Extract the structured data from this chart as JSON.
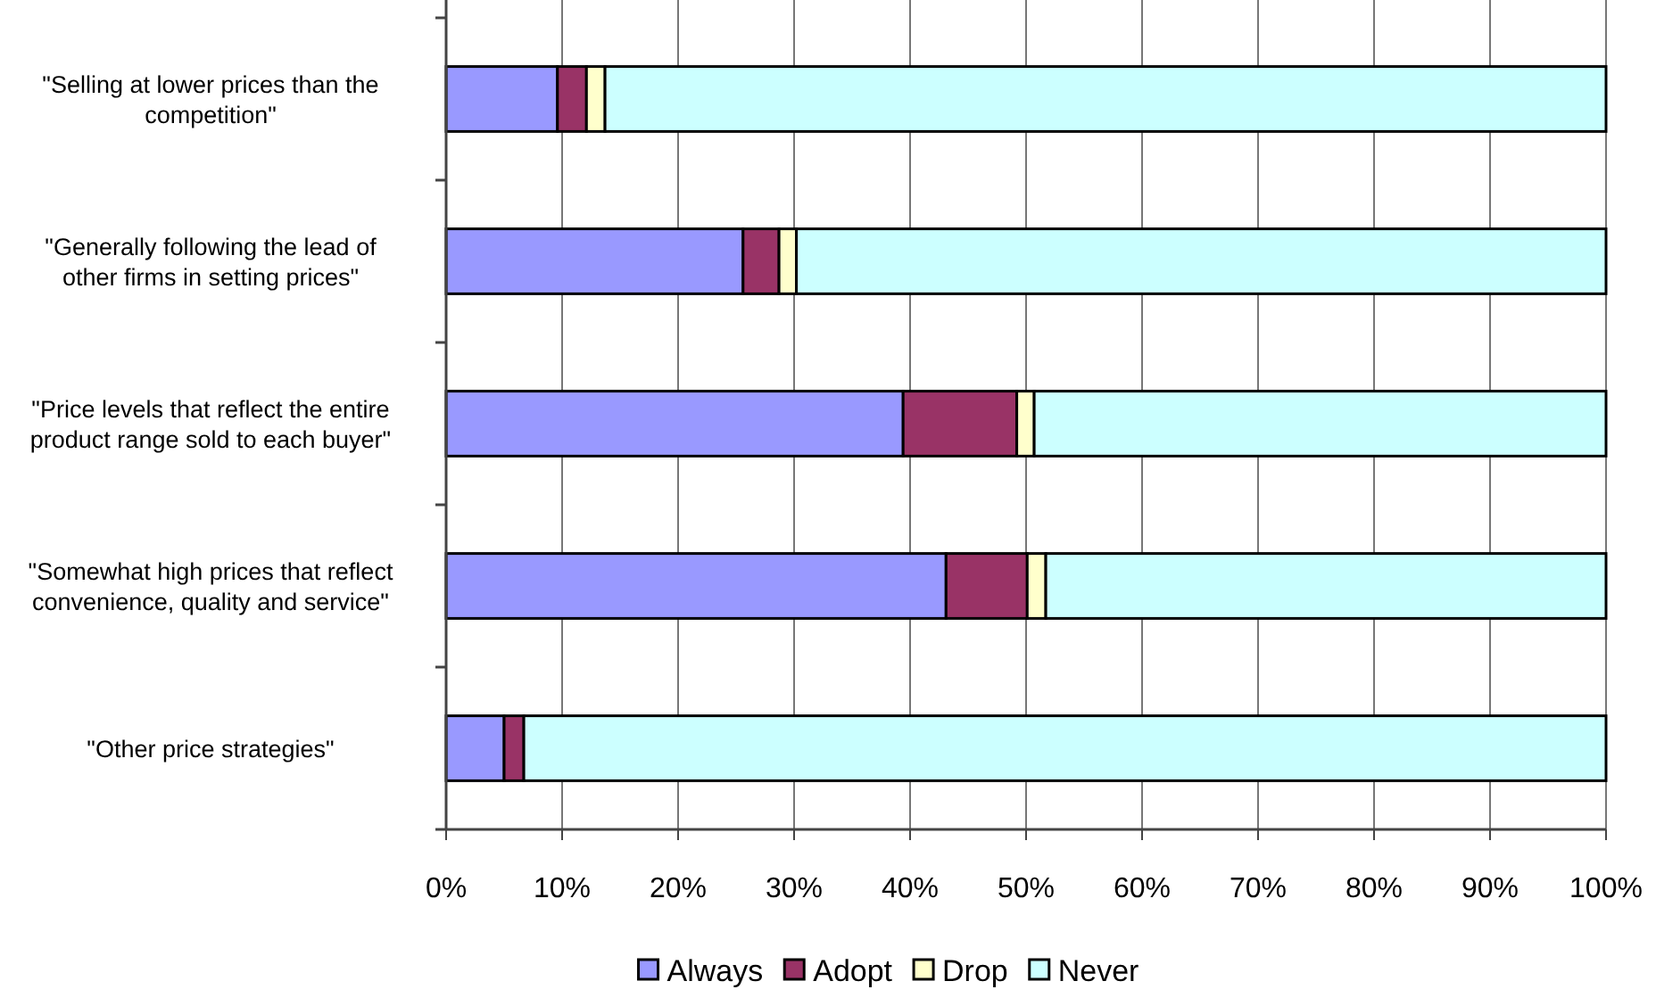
{
  "chart_data": {
    "type": "bar",
    "orientation": "horizontal",
    "stacked": true,
    "categories": [
      "\"Selling at lower prices than the competition\"",
      "\"Generally following the lead of other firms in setting prices\"",
      "\"Price levels that reflect the entire product range sold to each buyer\"",
      "\"Somewhat high prices that reflect convenience, quality and service\"",
      "\"Other price strategies\""
    ],
    "series": [
      {
        "name": "Always",
        "color": "#9999ff",
        "values": [
          9.6,
          25.6,
          39.4,
          43.1,
          5.0
        ]
      },
      {
        "name": "Adopt",
        "color": "#993366",
        "values": [
          2.5,
          3.1,
          9.8,
          7.0,
          1.7
        ]
      },
      {
        "name": "Drop",
        "color": "#ffffcc",
        "values": [
          1.6,
          1.5,
          1.5,
          1.6,
          0
        ]
      },
      {
        "name": "Never",
        "color": "#ccffff",
        "values": [
          86.3,
          69.8,
          49.3,
          48.3,
          93.3
        ]
      }
    ],
    "xlim": [
      0,
      100
    ],
    "xticks": [
      {
        "value": 0,
        "label": "0%"
      },
      {
        "value": 10,
        "label": "10%"
      },
      {
        "value": 20,
        "label": "20%"
      },
      {
        "value": 30,
        "label": "30%"
      },
      {
        "value": 40,
        "label": "40%"
      },
      {
        "value": 50,
        "label": "50%"
      },
      {
        "value": 60,
        "label": "60%"
      },
      {
        "value": 70,
        "label": "70%"
      },
      {
        "value": 80,
        "label": "80%"
      },
      {
        "value": 90,
        "label": "90%"
      },
      {
        "value": 100,
        "label": "100%"
      }
    ],
    "grid": "x",
    "legend": "bottom"
  }
}
